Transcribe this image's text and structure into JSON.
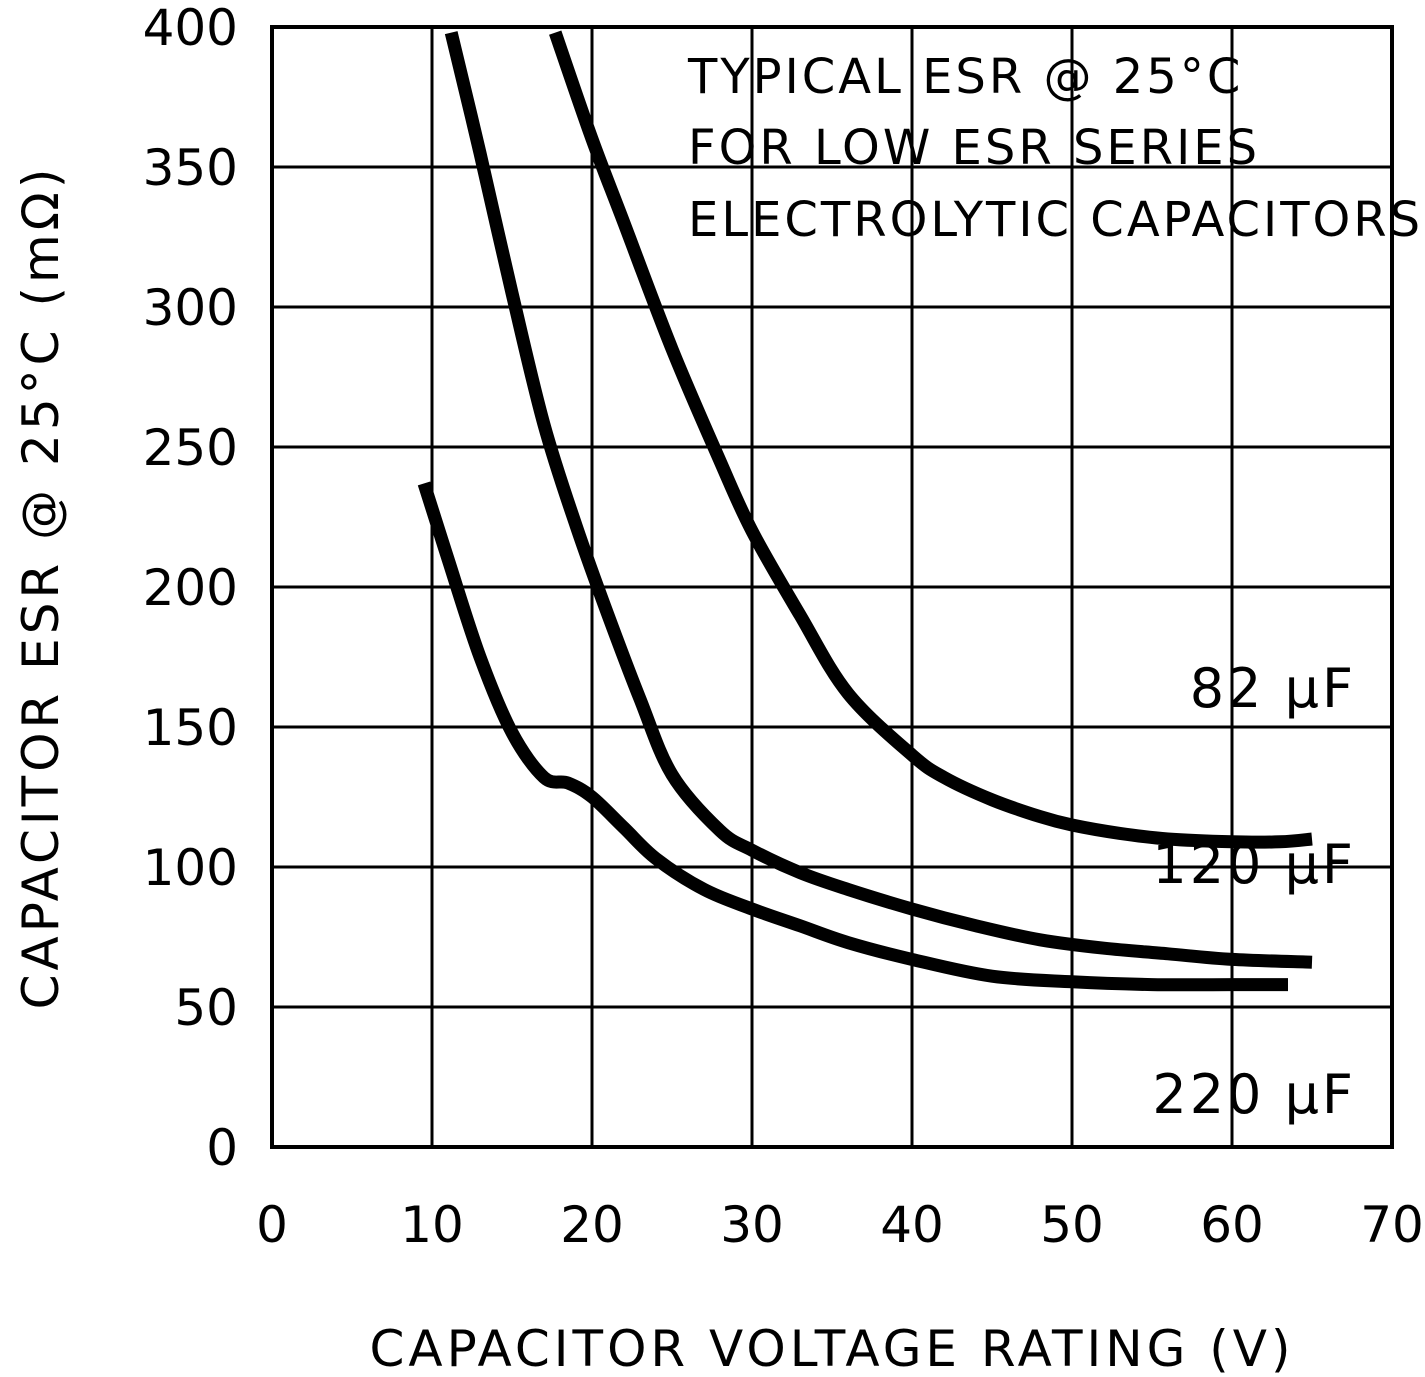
{
  "chart_data": {
    "type": "line",
    "xlabel": "CAPACITOR VOLTAGE RATING (V)",
    "ylabel": "CAPACITOR ESR @ 25°C (mΩ)",
    "xlim": [
      0,
      70
    ],
    "ylim": [
      0,
      400
    ],
    "x_ticks": [
      "0",
      "10",
      "20",
      "30",
      "40",
      "50",
      "60",
      "70"
    ],
    "y_ticks": [
      "0",
      "50",
      "100",
      "150",
      "200",
      "250",
      "300",
      "350",
      "400"
    ],
    "grid": true,
    "annotation": [
      "TYPICAL ESR @ 25°C",
      "FOR LOW ESR SERIES",
      "ELECTROLYTIC CAPACITORS"
    ],
    "series": [
      {
        "name": "82 µF",
        "x": [
          17.7,
          20,
          22,
          25,
          28,
          30,
          33,
          36,
          40,
          42,
          45,
          48,
          50,
          53,
          56,
          60,
          63,
          65
        ],
        "y": [
          398,
          360,
          330,
          285,
          245,
          220,
          190,
          162,
          140,
          132,
          124,
          118,
          115,
          112,
          110,
          109,
          109,
          110
        ]
      },
      {
        "name": "120 µF",
        "x": [
          11.2,
          13,
          15,
          17,
          19,
          21,
          23,
          25,
          28,
          30,
          33,
          36,
          40,
          44,
          48,
          52,
          56,
          60,
          65
        ],
        "y": [
          398,
          355,
          305,
          258,
          222,
          190,
          160,
          133,
          113,
          106,
          98,
          92,
          85,
          79,
          74,
          71,
          69,
          67,
          66
        ]
      },
      {
        "name": "220 µF",
        "x": [
          9.5,
          11,
          13,
          15,
          17,
          18.5,
          20,
          22,
          24,
          27,
          30,
          33,
          36,
          40,
          45,
          50,
          55,
          60,
          63.5
        ],
        "y": [
          237,
          210,
          175,
          148,
          132,
          130,
          125,
          114,
          103,
          92,
          85,
          79,
          73,
          67,
          61,
          59,
          58,
          58,
          58
        ]
      }
    ],
    "series_labels": [
      "82 µF",
      "120 µF",
      "220 µF"
    ]
  }
}
